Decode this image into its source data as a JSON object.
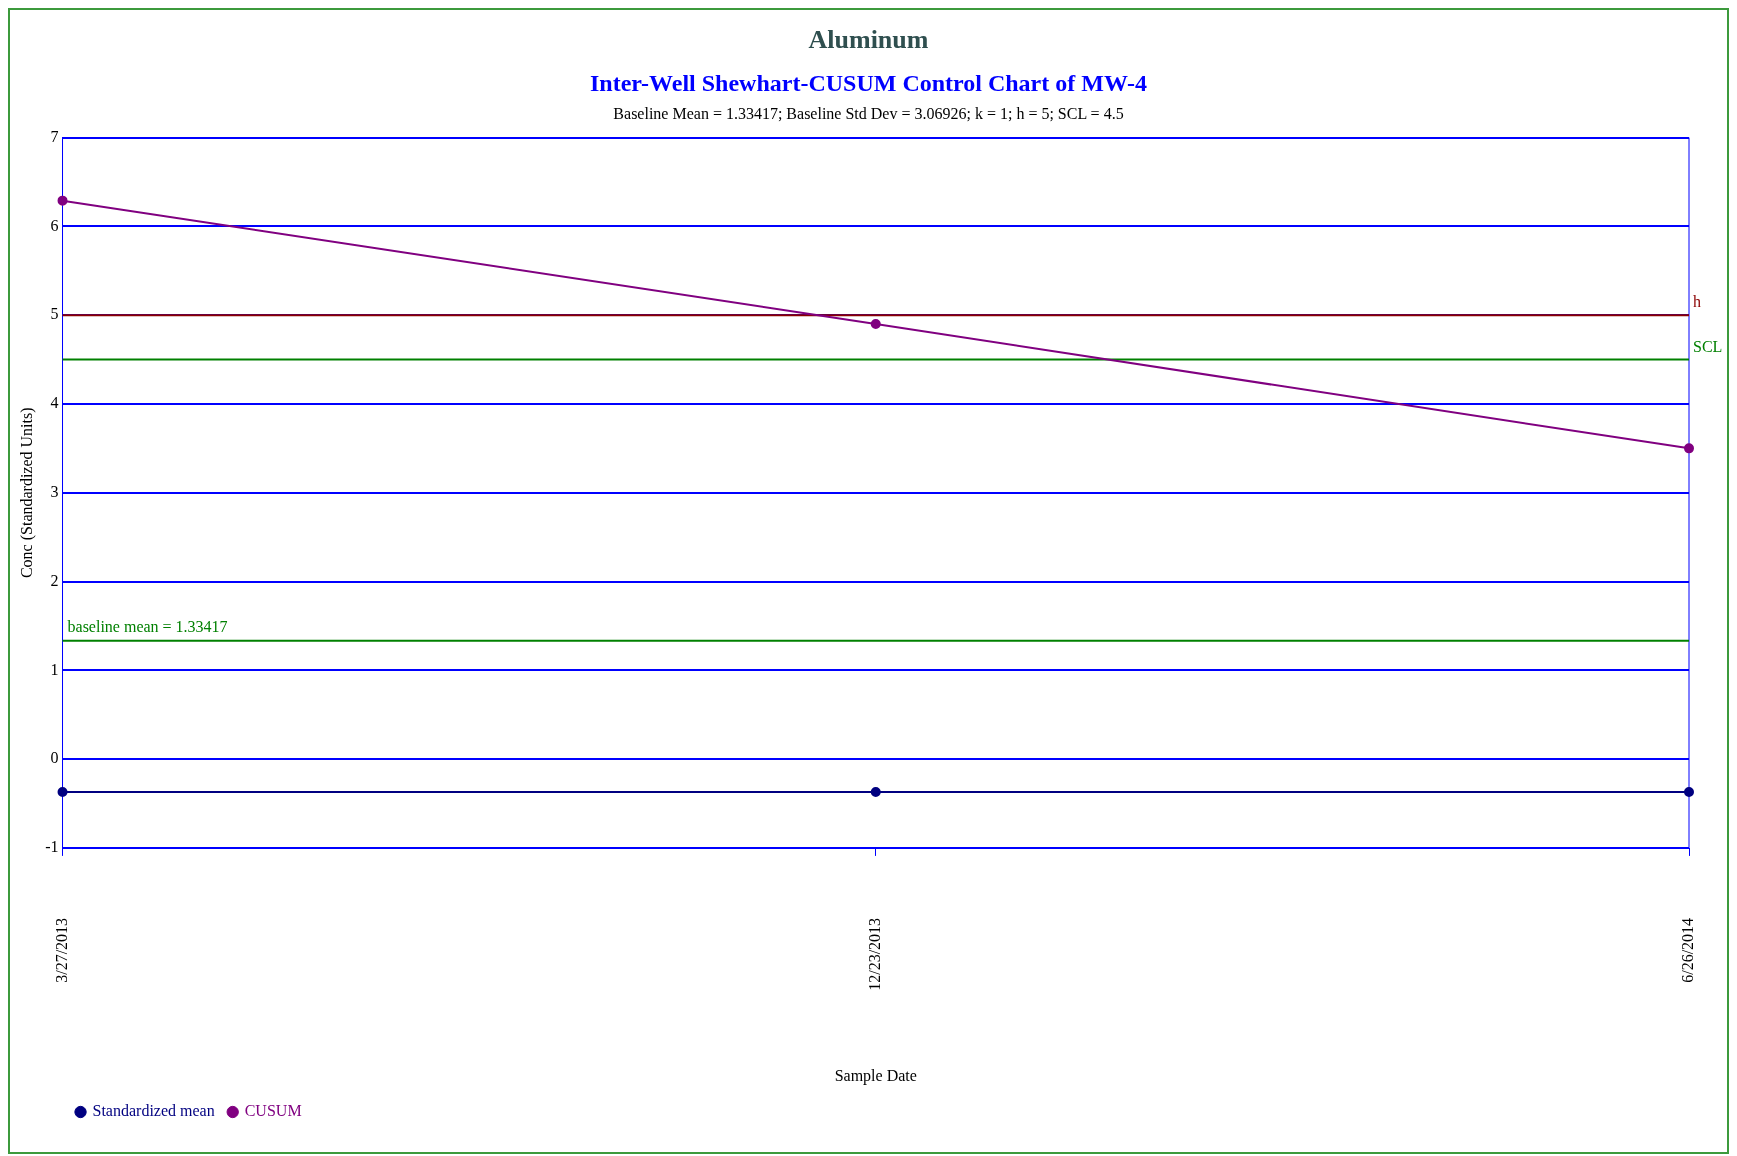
{
  "chart_data": {
    "type": "line",
    "title": "Aluminum",
    "subtitle": "Inter-Well Shewhart-CUSUM Control Chart of MW-4",
    "annotations": [
      "Baseline Mean = 1.33417; Baseline Std Dev = 3.06926; k = 1; h = 5; SCL = 4.5"
    ],
    "xlabel": "Sample Date",
    "ylabel": "Conc (Standardized Units)",
    "categories": [
      "3/27/2013",
      "12/23/2013",
      "6/26/2014"
    ],
    "series": [
      {
        "name": "Standardized mean",
        "color": "#000080",
        "values": [
          -0.37,
          -0.37,
          -0.37
        ]
      },
      {
        "name": "CUSUM",
        "color": "#800080",
        "values": [
          6.29,
          4.9,
          3.5
        ]
      }
    ],
    "ylim": [
      -1,
      7
    ],
    "yticks": [
      -1,
      0,
      1,
      2,
      3,
      4,
      5,
      6,
      7
    ],
    "ref_lines": [
      {
        "axis": "y",
        "value": 5,
        "label": "h",
        "color": "#8b0000"
      },
      {
        "axis": "y",
        "value": 4.5,
        "label": "SCL",
        "color": "#008000"
      },
      {
        "axis": "y",
        "value": 1.33417,
        "label": "baseline mean = 1.33417",
        "color": "#008000"
      }
    ],
    "grid": "y",
    "legend": "bottom left",
    "marker": "circle"
  }
}
